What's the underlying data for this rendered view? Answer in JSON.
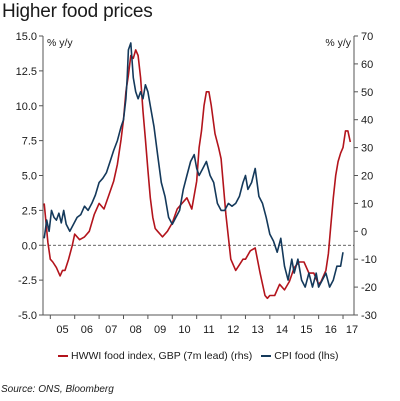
{
  "title": "Higher food prices",
  "source": "Source: ONS, Bloomberg",
  "colors": {
    "hwwi": "#b3141c",
    "cpi": "#14395b",
    "axis": "#555555",
    "zero": "#333333",
    "background": "#ffffff"
  },
  "chart_data": {
    "type": "line",
    "left_axis": {
      "unit": "% y/y",
      "min": -5,
      "max": 15,
      "ticks": [
        "-5.0",
        "-2.5",
        "0.0",
        "2.5",
        "5.0",
        "7.5",
        "10.0",
        "12.5",
        "15.0"
      ]
    },
    "right_axis": {
      "unit": "% y/y",
      "min": -30,
      "max": 70,
      "ticks": [
        "-30",
        "-20",
        "-10",
        "0",
        "10",
        "20",
        "30",
        "40",
        "50",
        "60",
        "70"
      ]
    },
    "x_axis": {
      "min": 2004.7,
      "max": 2017.45,
      "ticks": [
        "05",
        "06",
        "07",
        "08",
        "09",
        "10",
        "11",
        "12",
        "13",
        "14",
        "15",
        "16",
        "17"
      ],
      "tick_years": [
        2005,
        2006,
        2007,
        2008,
        2009,
        2010,
        2011,
        2012,
        2013,
        2014,
        2015,
        2016,
        2017
      ]
    },
    "zero_line": "dashed",
    "series": [
      {
        "name": "HWWI food index, GBP (7m lead) (rhs)",
        "axis": "right",
        "x": [
          2004.75,
          2004.9,
          2005.0,
          2005.1,
          2005.25,
          2005.4,
          2005.5,
          2005.6,
          2005.75,
          2005.9,
          2006.0,
          2006.2,
          2006.4,
          2006.6,
          2006.8,
          2007.0,
          2007.2,
          2007.4,
          2007.6,
          2007.75,
          2007.9,
          2008.0,
          2008.1,
          2008.2,
          2008.3,
          2008.4,
          2008.5,
          2008.6,
          2008.7,
          2008.8,
          2008.9,
          2009.0,
          2009.1,
          2009.2,
          2009.3,
          2009.4,
          2009.6,
          2009.8,
          2010.0,
          2010.2,
          2010.4,
          2010.6,
          2010.8,
          2011.0,
          2011.1,
          2011.2,
          2011.3,
          2011.4,
          2011.5,
          2011.6,
          2011.75,
          2011.9,
          2012.0,
          2012.2,
          2012.4,
          2012.6,
          2012.75,
          2012.9,
          2013.0,
          2013.2,
          2013.4,
          2013.6,
          2013.8,
          2013.9,
          2014.0,
          2014.2,
          2014.4,
          2014.6,
          2014.8,
          2015.0,
          2015.2,
          2015.4,
          2015.6,
          2015.8,
          2016.0,
          2016.1,
          2016.2,
          2016.3,
          2016.4,
          2016.5,
          2016.6,
          2016.7,
          2016.8,
          2016.9,
          2017.0,
          2017.1,
          2017.2,
          2017.3
        ],
        "y": [
          10,
          -4,
          -10,
          -11,
          -13,
          -16,
          -14,
          -14,
          -10,
          -5,
          -1,
          -3,
          -2,
          0,
          6,
          10,
          8,
          13,
          18,
          24,
          33,
          40,
          50,
          56,
          63,
          62,
          65,
          63,
          55,
          43,
          33,
          22,
          12,
          5,
          1,
          0,
          -2,
          0,
          3,
          8,
          10,
          12,
          8,
          18,
          30,
          36,
          45,
          50,
          50,
          45,
          35,
          30,
          26,
          6,
          -10,
          -14,
          -12,
          -10,
          -10,
          -7,
          -6,
          -15,
          -23,
          -24,
          -23,
          -23,
          -19,
          -21,
          -18,
          -13,
          -11,
          -11,
          -15,
          -15,
          -19,
          -18,
          -16,
          -14,
          -8,
          2,
          12,
          20,
          25,
          28,
          30,
          36,
          36,
          32
        ]
      },
      {
        "name": "CPI food (lhs)",
        "axis": "left",
        "x": [
          2004.75,
          2004.85,
          2004.95,
          2005.05,
          2005.15,
          2005.25,
          2005.35,
          2005.45,
          2005.55,
          2005.65,
          2005.8,
          2005.95,
          2006.1,
          2006.25,
          2006.4,
          2006.55,
          2006.7,
          2006.85,
          2007.0,
          2007.15,
          2007.3,
          2007.45,
          2007.6,
          2007.75,
          2007.9,
          2008.0,
          2008.1,
          2008.15,
          2008.2,
          2008.3,
          2008.4,
          2008.5,
          2008.6,
          2008.7,
          2008.8,
          2008.9,
          2009.0,
          2009.1,
          2009.25,
          2009.4,
          2009.55,
          2009.7,
          2009.85,
          2010.0,
          2010.15,
          2010.3,
          2010.45,
          2010.6,
          2010.75,
          2010.9,
          2011.0,
          2011.1,
          2011.25,
          2011.4,
          2011.55,
          2011.7,
          2011.85,
          2012.0,
          2012.15,
          2012.3,
          2012.45,
          2012.6,
          2012.75,
          2012.9,
          2013.0,
          2013.1,
          2013.25,
          2013.4,
          2013.55,
          2013.7,
          2013.85,
          2014.0,
          2014.15,
          2014.3,
          2014.45,
          2014.6,
          2014.75,
          2014.9,
          2015.0,
          2015.15,
          2015.3,
          2015.45,
          2015.6,
          2015.75,
          2015.9,
          2016.0,
          2016.15,
          2016.3,
          2016.45,
          2016.6,
          2016.75,
          2016.9,
          2017.0
        ],
        "y": [
          0.5,
          1.8,
          1.0,
          2.5,
          2.0,
          1.8,
          2.3,
          1.6,
          2.5,
          1.5,
          1.0,
          1.5,
          2.0,
          2.2,
          2.8,
          2.5,
          3.0,
          3.6,
          4.5,
          4.8,
          5.2,
          6.0,
          6.8,
          7.5,
          8.5,
          9.0,
          10.5,
          12.0,
          14.0,
          14.5,
          12.0,
          11.0,
          10.5,
          11.0,
          10.5,
          11.5,
          11.0,
          10.0,
          8.5,
          6.5,
          4.5,
          3.5,
          2.0,
          1.5,
          2.0,
          2.5,
          4.0,
          5.0,
          6.0,
          6.5,
          5.5,
          5.0,
          5.5,
          6.0,
          5.0,
          4.5,
          3.0,
          2.5,
          2.5,
          3.0,
          2.8,
          3.0,
          3.5,
          4.5,
          5.0,
          4.0,
          4.5,
          5.5,
          3.5,
          3.0,
          2.0,
          0.8,
          0.3,
          -0.5,
          0.5,
          -1.5,
          -2.5,
          -1.0,
          -2.0,
          -1.0,
          -2.5,
          -3.0,
          -2.0,
          -3.0,
          -2.0,
          -3.0,
          -2.5,
          -2.0,
          -3.0,
          -2.5,
          -1.5,
          -1.5,
          -0.5
        ]
      }
    ]
  }
}
